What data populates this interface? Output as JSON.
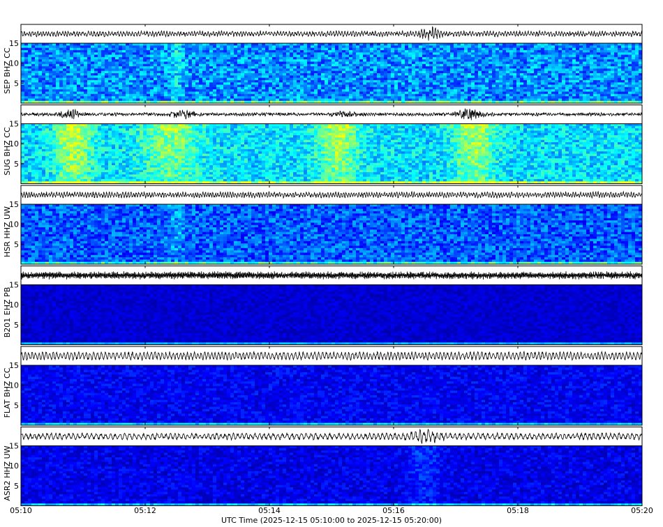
{
  "chart_data": {
    "type": "heatmap",
    "title": "",
    "xlabel": "UTC Time (2025-12-15 05:10:00 to 2025-12-15 05:20:00)",
    "x_ticks": [
      "05:10",
      "05:12",
      "05:14",
      "05:16",
      "05:18",
      "05:20"
    ],
    "x_range_minutes": [
      0,
      10
    ],
    "y_ticks": [
      5,
      10,
      15
    ],
    "ylim": [
      0,
      15
    ],
    "colormap": [
      "#00008b",
      "#0000ff",
      "#0080ff",
      "#00ffff",
      "#80ff80",
      "#ffff00"
    ],
    "waveform_color": "#000000",
    "channels": [
      {
        "label": "SEP BHZ CC",
        "background": 0.42,
        "noise": 0.18,
        "wave_amp": 0.45,
        "wave_cycles": 220,
        "bursts": [
          {
            "t": 6.6,
            "w": 0.15,
            "a": 1.6
          }
        ],
        "bright_columns": [
          {
            "t": 2.5,
            "w": 0.12,
            "a": 0.15
          }
        ]
      },
      {
        "label": "SUG BHZ CC",
        "background": 0.55,
        "noise": 0.16,
        "wave_amp": 0.12,
        "wave_cycles": 260,
        "bursts": [
          {
            "t": 0.8,
            "w": 0.15,
            "a": 2.5
          },
          {
            "t": 2.6,
            "w": 0.2,
            "a": 2.0
          },
          {
            "t": 5.2,
            "w": 0.15,
            "a": 1.8
          },
          {
            "t": 7.2,
            "w": 0.2,
            "a": 2.5
          }
        ],
        "bright_columns": [
          {
            "t": 0.85,
            "w": 0.3,
            "a": 0.35
          },
          {
            "t": 2.4,
            "w": 0.5,
            "a": 0.25
          },
          {
            "t": 5.1,
            "w": 0.35,
            "a": 0.3
          },
          {
            "t": 7.3,
            "w": 0.35,
            "a": 0.3
          }
        ]
      },
      {
        "label": "HSR HHZ UW",
        "background": 0.34,
        "noise": 0.16,
        "wave_amp": 0.5,
        "wave_cycles": 240,
        "bursts": [],
        "bright_columns": [
          {
            "t": 2.5,
            "w": 0.15,
            "a": 0.12
          }
        ]
      },
      {
        "label": "B201 EHZ PB",
        "background": 0.12,
        "noise": 0.06,
        "wave_amp": 0.75,
        "wave_cycles": 600,
        "bursts": [],
        "bright_columns": []
      },
      {
        "label": "FLAT BHZ CC",
        "background": 0.18,
        "noise": 0.1,
        "wave_amp": 0.8,
        "wave_cycles": 170,
        "bursts": [],
        "bright_columns": []
      },
      {
        "label": "ASR2 HHZ UW",
        "background": 0.16,
        "noise": 0.1,
        "wave_amp": 0.6,
        "wave_cycles": 140,
        "bursts": [
          {
            "t": 6.5,
            "w": 0.25,
            "a": 1.3
          }
        ],
        "bright_columns": [
          {
            "t": 6.5,
            "w": 0.25,
            "a": 0.12
          }
        ]
      }
    ]
  }
}
